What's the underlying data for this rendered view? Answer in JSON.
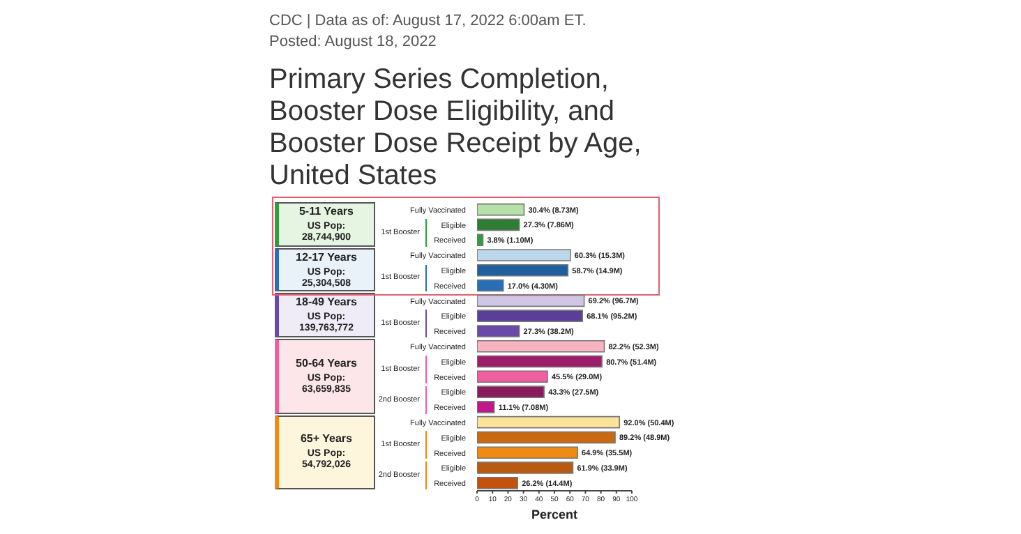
{
  "chart_data": {
    "type": "bar",
    "orientation": "horizontal",
    "title": "Primary Series Completion, Booster Dose Eligibility, and Booster Dose Receipt by Age, United States",
    "xlabel": "Percent",
    "annotations": [
      "CDC | Data as of: August 17, 2022 6:00am ET.",
      "Posted: August 18, 2022",
      "5-11 Years",
      "US Pop: 28,744,900",
      "1st Booster",
      "12-17 Years",
      "US Pop: 25,304,508",
      "1st Booster",
      "18-49 Years",
      "US Pop: 139,763,772",
      "1st Booster",
      "50-64 Years",
      "US Pop: 63,659,835",
      "1st Booster",
      "2nd Booster",
      "65+ Years",
      "US Pop: 54,792,026",
      "1st Booster",
      "2nd Booster"
    ],
    "categories": [
      "Fully Vaccinated",
      "Eligible",
      "Received",
      "Fully Vaccinated",
      "Eligible",
      "Received",
      "Fully Vaccinated",
      "Eligible",
      "Received",
      "Fully Vaccinated",
      "Eligible",
      "Received",
      "Eligible",
      "Received",
      "Fully Vaccinated",
      "Eligible",
      "Received",
      "Eligible",
      "Received"
    ],
    "values": [
      30.4,
      27.3,
      3.8,
      60.3,
      58.7,
      17.0,
      69.2,
      68.1,
      27.3,
      82.2,
      80.7,
      45.5,
      43.3,
      11.1,
      92.0,
      89.2,
      64.9,
      61.9,
      26.2
    ],
    "value_labels": [
      "30.4% (8.73M)",
      "27.3% (7.86M)",
      "3.8% (1.10M)",
      "60.3% (15.3M)",
      "58.7% (14.9M)",
      "17.0% (4.30M)",
      "69.2% (96.7M)",
      "68.1% (95.2M)",
      "27.3% (38.2M)",
      "82.2% (52.3M)",
      "80.7% (51.4M)",
      "45.5% (29.0M)",
      "43.3% (27.5M)",
      "11.1% (7.08M)",
      "92.0% (50.4M)",
      "89.2% (48.9M)",
      "64.9% (35.5M)",
      "61.9% (33.9M)",
      "26.2% (14.4M)"
    ],
    "colors": [
      "#b5e0a8",
      "#2e7d32",
      "#2e9e3e",
      "#bcd6ec",
      "#1f5f9e",
      "#2a6fb5",
      "#cfc6e6",
      "#5a3f99",
      "#6a4aa8",
      "#f7b3bf",
      "#9c1e6a",
      "#ef5fa0",
      "#8a1a5e",
      "#c0188a",
      "#fde29a",
      "#c96a10",
      "#ef8a12",
      "#b85a10",
      "#c2520e"
    ],
    "xlim": [
      0,
      100
    ],
    "xticks": [
      0,
      10,
      20,
      30,
      40,
      50,
      60,
      70,
      80,
      90,
      100
    ],
    "grid": false,
    "legend": false
  }
}
